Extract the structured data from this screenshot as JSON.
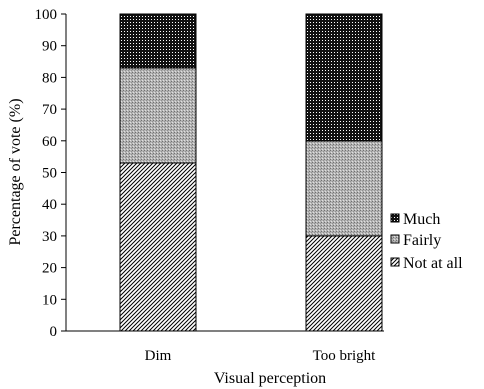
{
  "chart_data": {
    "type": "bar",
    "stacked": true,
    "categories": [
      "Dim",
      "Too bright"
    ],
    "series": [
      {
        "name": "Not at all",
        "values": [
          53,
          30
        ],
        "pattern": "diagonal-hatch"
      },
      {
        "name": "Fairly",
        "values": [
          30,
          30
        ],
        "pattern": "gray-crosshatch"
      },
      {
        "name": "Much",
        "values": [
          17,
          40
        ],
        "pattern": "dense-dots"
      }
    ],
    "xlabel": "Visual perception",
    "ylabel": "Percentage of vote (%)",
    "ylim": [
      0,
      100
    ],
    "yticks": [
      0,
      10,
      20,
      30,
      40,
      50,
      60,
      70,
      80,
      90,
      100
    ],
    "grid": false,
    "legend_position": "right",
    "legend_order": [
      "Much",
      "Fairly",
      "Not at all"
    ]
  }
}
